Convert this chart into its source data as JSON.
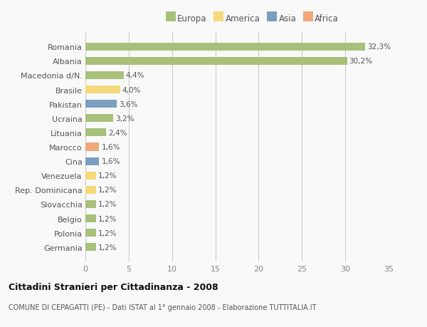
{
  "countries": [
    "Romania",
    "Albania",
    "Macedonia d/N.",
    "Brasile",
    "Pakistan",
    "Ucraina",
    "Lituania",
    "Marocco",
    "Cina",
    "Venezuela",
    "Rep. Dominicana",
    "Slovacchia",
    "Belgio",
    "Polonia",
    "Germania"
  ],
  "values": [
    32.3,
    30.2,
    4.4,
    4.0,
    3.6,
    3.2,
    2.4,
    1.6,
    1.6,
    1.2,
    1.2,
    1.2,
    1.2,
    1.2,
    1.2
  ],
  "labels": [
    "32,3%",
    "30,2%",
    "4,4%",
    "4,0%",
    "3,6%",
    "3,2%",
    "2,4%",
    "1,6%",
    "1,6%",
    "1,2%",
    "1,2%",
    "1,2%",
    "1,2%",
    "1,2%",
    "1,2%"
  ],
  "colors": [
    "#a8c07a",
    "#a8c07a",
    "#a8c07a",
    "#f5d97a",
    "#7a9fc0",
    "#a8c07a",
    "#a8c07a",
    "#f0a87a",
    "#7a9fc0",
    "#f5d97a",
    "#f5d97a",
    "#a8c07a",
    "#a8c07a",
    "#a8c07a",
    "#a8c07a"
  ],
  "legend_labels": [
    "Europa",
    "America",
    "Asia",
    "Africa"
  ],
  "legend_colors": [
    "#a8c07a",
    "#f5d97a",
    "#7a9fc0",
    "#f0a87a"
  ],
  "title": "Cittadini Stranieri per Cittadinanza - 2008",
  "subtitle": "COMUNE DI CEPAGATTI (PE) - Dati ISTAT al 1° gennaio 2008 - Elaborazione TUTTITALIA.IT",
  "xlim": [
    0,
    35
  ],
  "xticks": [
    0,
    5,
    10,
    15,
    20,
    25,
    30,
    35
  ],
  "background_color": "#f9f9f9",
  "grid_color": "#cccccc",
  "bar_height": 0.55,
  "label_fontsize": 7.5,
  "tick_fontsize": 8,
  "legend_fontsize": 8.5
}
